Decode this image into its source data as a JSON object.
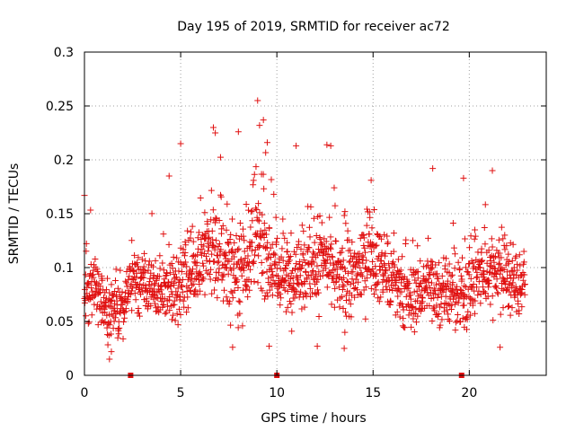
{
  "chart_data": {
    "type": "scatter",
    "title": "Day 195 of 2019, SRMTID for receiver ac72",
    "xlabel": "GPS time / hours",
    "ylabel": "SRMTID / TECUs",
    "xlim": [
      0,
      24
    ],
    "ylim": [
      0,
      0.3
    ],
    "grid": true,
    "x_ticks": [
      0,
      5,
      10,
      15,
      20
    ],
    "x_tick_labels": [
      "0",
      "5",
      "10",
      "15",
      "20"
    ],
    "y_ticks": [
      0,
      0.05,
      0.1,
      0.15,
      0.2,
      0.25,
      0.3
    ],
    "y_tick_labels": [
      "0",
      "0.05",
      "0.1",
      "0.15",
      "0.2",
      "0.25",
      "0.3"
    ],
    "marker": "+",
    "color": "#e01010",
    "data_gap_markers_x": [
      2.4,
      10.0,
      19.6
    ],
    "trend": [
      {
        "x": 0.0,
        "y": 0.08
      },
      {
        "x": 0.5,
        "y": 0.085
      },
      {
        "x": 1.0,
        "y": 0.065
      },
      {
        "x": 1.5,
        "y": 0.055
      },
      {
        "x": 2.0,
        "y": 0.065
      },
      {
        "x": 2.5,
        "y": 0.09
      },
      {
        "x": 3.0,
        "y": 0.085
      },
      {
        "x": 3.5,
        "y": 0.08
      },
      {
        "x": 4.0,
        "y": 0.08
      },
      {
        "x": 4.5,
        "y": 0.08
      },
      {
        "x": 5.0,
        "y": 0.085
      },
      {
        "x": 5.5,
        "y": 0.095
      },
      {
        "x": 6.0,
        "y": 0.105
      },
      {
        "x": 6.5,
        "y": 0.115
      },
      {
        "x": 7.0,
        "y": 0.11
      },
      {
        "x": 7.5,
        "y": 0.1
      },
      {
        "x": 8.0,
        "y": 0.1
      },
      {
        "x": 8.5,
        "y": 0.11
      },
      {
        "x": 9.0,
        "y": 0.13
      },
      {
        "x": 9.5,
        "y": 0.115
      },
      {
        "x": 10.0,
        "y": 0.095
      },
      {
        "x": 10.5,
        "y": 0.09
      },
      {
        "x": 11.0,
        "y": 0.095
      },
      {
        "x": 11.5,
        "y": 0.1
      },
      {
        "x": 12.0,
        "y": 0.1
      },
      {
        "x": 12.5,
        "y": 0.105
      },
      {
        "x": 13.0,
        "y": 0.095
      },
      {
        "x": 13.5,
        "y": 0.085
      },
      {
        "x": 14.0,
        "y": 0.09
      },
      {
        "x": 14.5,
        "y": 0.105
      },
      {
        "x": 15.0,
        "y": 0.11
      },
      {
        "x": 15.5,
        "y": 0.1
      },
      {
        "x": 16.0,
        "y": 0.085
      },
      {
        "x": 16.5,
        "y": 0.075
      },
      {
        "x": 17.0,
        "y": 0.07
      },
      {
        "x": 17.5,
        "y": 0.08
      },
      {
        "x": 18.0,
        "y": 0.085
      },
      {
        "x": 18.5,
        "y": 0.08
      },
      {
        "x": 19.0,
        "y": 0.075
      },
      {
        "x": 19.5,
        "y": 0.07
      },
      {
        "x": 20.0,
        "y": 0.085
      },
      {
        "x": 20.5,
        "y": 0.09
      },
      {
        "x": 21.0,
        "y": 0.095
      },
      {
        "x": 21.5,
        "y": 0.1
      },
      {
        "x": 22.0,
        "y": 0.09
      },
      {
        "x": 22.5,
        "y": 0.085
      },
      {
        "x": 22.9,
        "y": 0.085
      }
    ],
    "spread": [
      {
        "x": 0.0,
        "s": 0.03
      },
      {
        "x": 1.5,
        "s": 0.022
      },
      {
        "x": 3.0,
        "s": 0.025
      },
      {
        "x": 5.0,
        "s": 0.028
      },
      {
        "x": 7.0,
        "s": 0.035
      },
      {
        "x": 9.0,
        "s": 0.045
      },
      {
        "x": 10.5,
        "s": 0.03
      },
      {
        "x": 12.0,
        "s": 0.035
      },
      {
        "x": 14.0,
        "s": 0.032
      },
      {
        "x": 16.0,
        "s": 0.028
      },
      {
        "x": 18.0,
        "s": 0.03
      },
      {
        "x": 20.0,
        "s": 0.03
      },
      {
        "x": 22.9,
        "s": 0.03
      }
    ],
    "notable_points": [
      {
        "x": 9.0,
        "y": 0.255
      },
      {
        "x": 9.3,
        "y": 0.237
      },
      {
        "x": 9.1,
        "y": 0.232
      },
      {
        "x": 6.7,
        "y": 0.23
      },
      {
        "x": 6.8,
        "y": 0.225
      },
      {
        "x": 8.0,
        "y": 0.226
      },
      {
        "x": 9.5,
        "y": 0.216
      },
      {
        "x": 5.0,
        "y": 0.215
      },
      {
        "x": 11.0,
        "y": 0.213
      },
      {
        "x": 12.6,
        "y": 0.214
      },
      {
        "x": 12.8,
        "y": 0.213
      },
      {
        "x": 21.2,
        "y": 0.19
      },
      {
        "x": 18.1,
        "y": 0.192
      },
      {
        "x": 14.9,
        "y": 0.181
      },
      {
        "x": 4.4,
        "y": 0.185
      },
      {
        "x": 0.0,
        "y": 0.167
      },
      {
        "x": 19.7,
        "y": 0.183
      },
      {
        "x": 1.3,
        "y": 0.015
      },
      {
        "x": 1.4,
        "y": 0.022
      },
      {
        "x": 21.6,
        "y": 0.026
      },
      {
        "x": 7.7,
        "y": 0.026
      },
      {
        "x": 12.1,
        "y": 0.027
      },
      {
        "x": 9.6,
        "y": 0.027
      },
      {
        "x": 13.5,
        "y": 0.025
      }
    ],
    "sample_count": 1700,
    "x_end": 22.9
  }
}
